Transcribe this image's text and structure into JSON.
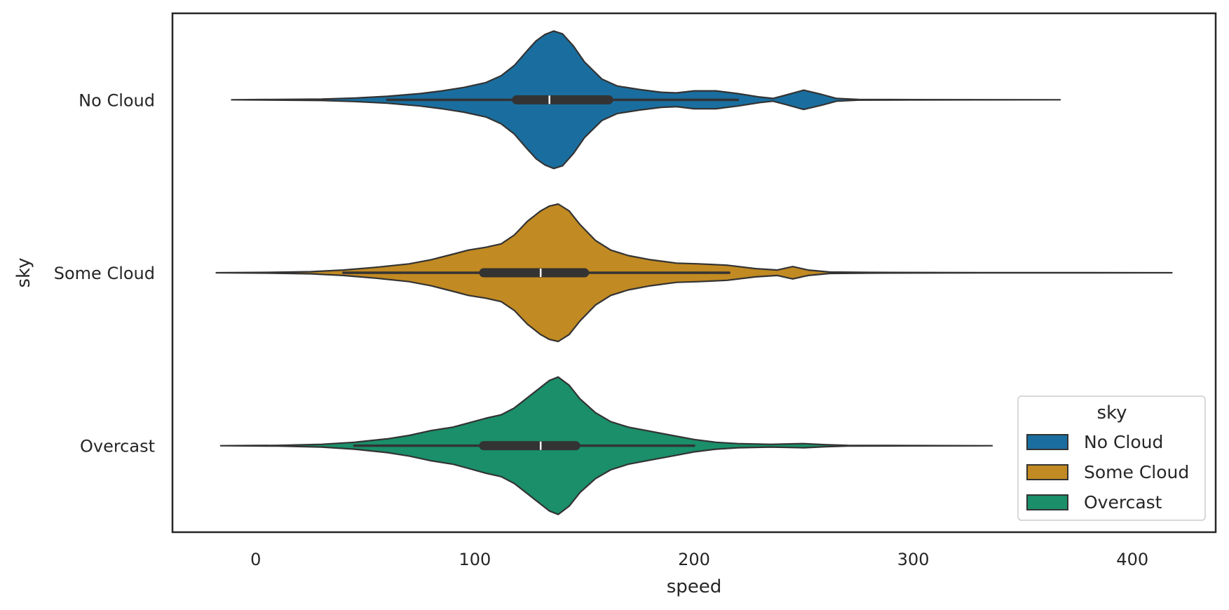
{
  "chart_data": {
    "type": "violin",
    "orientation": "horizontal",
    "title": "",
    "xlabel": "speed",
    "ylabel": "sky",
    "xlim": [
      -38,
      438
    ],
    "xticks": [
      0,
      100,
      200,
      300,
      400
    ],
    "categories": [
      "No Cloud",
      "Some Cloud",
      "Overcast"
    ],
    "grid": false,
    "legend": {
      "title": "sky",
      "placement": "bottom-right"
    },
    "series": [
      {
        "name": "No Cloud",
        "color": "#1a6e9f",
        "range": [
          -11,
          367
        ],
        "whisker": [
          60,
          220
        ],
        "box": [
          119,
          161
        ],
        "median": 134,
        "density": [
          [
            -11,
            0.0
          ],
          [
            10,
            0.005
          ],
          [
            30,
            0.01
          ],
          [
            45,
            0.025
          ],
          [
            60,
            0.05
          ],
          [
            75,
            0.09
          ],
          [
            85,
            0.13
          ],
          [
            95,
            0.18
          ],
          [
            105,
            0.25
          ],
          [
            112,
            0.35
          ],
          [
            118,
            0.5
          ],
          [
            124,
            0.72
          ],
          [
            128,
            0.86
          ],
          [
            132,
            0.95
          ],
          [
            136,
            1.0
          ],
          [
            140,
            0.96
          ],
          [
            145,
            0.78
          ],
          [
            150,
            0.55
          ],
          [
            158,
            0.3
          ],
          [
            165,
            0.2
          ],
          [
            175,
            0.15
          ],
          [
            185,
            0.11
          ],
          [
            192,
            0.1
          ],
          [
            200,
            0.13
          ],
          [
            210,
            0.13
          ],
          [
            220,
            0.09
          ],
          [
            230,
            0.04
          ],
          [
            236,
            0.02
          ],
          [
            242,
            0.07
          ],
          [
            250,
            0.14
          ],
          [
            258,
            0.08
          ],
          [
            265,
            0.02
          ],
          [
            275,
            0.005
          ],
          [
            300,
            0.002
          ],
          [
            330,
            0.001
          ],
          [
            367,
            0.0
          ]
        ]
      },
      {
        "name": "Some Cloud",
        "color": "#c28a22",
        "range": [
          -18,
          418
        ],
        "whisker": [
          40,
          216
        ],
        "box": [
          104,
          150
        ],
        "median": 130,
        "density": [
          [
            -18,
            0.0
          ],
          [
            5,
            0.005
          ],
          [
            25,
            0.015
          ],
          [
            40,
            0.04
          ],
          [
            55,
            0.08
          ],
          [
            70,
            0.13
          ],
          [
            80,
            0.19
          ],
          [
            90,
            0.27
          ],
          [
            97,
            0.33
          ],
          [
            105,
            0.37
          ],
          [
            112,
            0.42
          ],
          [
            118,
            0.55
          ],
          [
            124,
            0.75
          ],
          [
            130,
            0.9
          ],
          [
            134,
            0.97
          ],
          [
            138,
            1.0
          ],
          [
            143,
            0.9
          ],
          [
            148,
            0.7
          ],
          [
            155,
            0.47
          ],
          [
            162,
            0.33
          ],
          [
            170,
            0.25
          ],
          [
            180,
            0.19
          ],
          [
            192,
            0.14
          ],
          [
            202,
            0.13
          ],
          [
            215,
            0.11
          ],
          [
            228,
            0.06
          ],
          [
            238,
            0.04
          ],
          [
            245,
            0.09
          ],
          [
            252,
            0.04
          ],
          [
            262,
            0.01
          ],
          [
            280,
            0.005
          ],
          [
            330,
            0.002
          ],
          [
            380,
            0.001
          ],
          [
            418,
            0.0
          ]
        ]
      },
      {
        "name": "Overcast",
        "color": "#1a8f6a",
        "range": [
          -16,
          336
        ],
        "whisker": [
          45,
          200
        ],
        "box": [
          104,
          146
        ],
        "median": 130,
        "density": [
          [
            -16,
            0.0
          ],
          [
            10,
            0.005
          ],
          [
            30,
            0.02
          ],
          [
            45,
            0.05
          ],
          [
            60,
            0.1
          ],
          [
            70,
            0.15
          ],
          [
            80,
            0.22
          ],
          [
            90,
            0.27
          ],
          [
            97,
            0.33
          ],
          [
            105,
            0.4
          ],
          [
            112,
            0.45
          ],
          [
            118,
            0.55
          ],
          [
            124,
            0.7
          ],
          [
            130,
            0.85
          ],
          [
            134,
            0.95
          ],
          [
            138,
            1.0
          ],
          [
            143,
            0.88
          ],
          [
            148,
            0.68
          ],
          [
            155,
            0.48
          ],
          [
            162,
            0.35
          ],
          [
            170,
            0.27
          ],
          [
            180,
            0.21
          ],
          [
            190,
            0.15
          ],
          [
            200,
            0.09
          ],
          [
            210,
            0.05
          ],
          [
            220,
            0.03
          ],
          [
            235,
            0.02
          ],
          [
            250,
            0.03
          ],
          [
            260,
            0.015
          ],
          [
            270,
            0.005
          ],
          [
            300,
            0.002
          ],
          [
            336,
            0.0
          ]
        ]
      }
    ]
  }
}
